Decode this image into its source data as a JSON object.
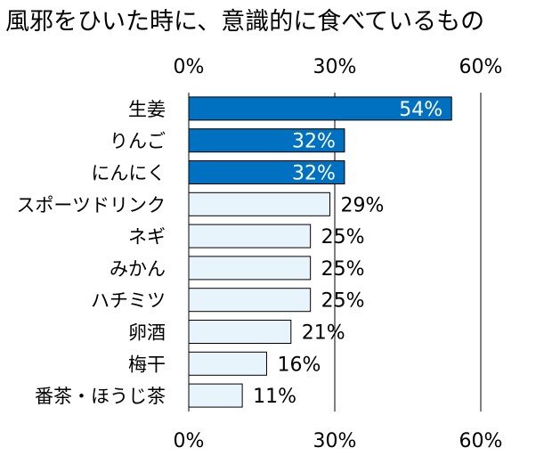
{
  "chart_data": {
    "type": "bar",
    "orientation": "horizontal",
    "title": "風邪をひいた時に、意識的に食べているもの",
    "categories": [
      "生姜",
      "りんご",
      "にんにく",
      "スポーツドリンク",
      "ネギ",
      "みかん",
      "ハチミツ",
      "卵酒",
      "梅干",
      "番茶・ほうじ茶"
    ],
    "values": [
      54,
      32,
      32,
      29,
      25,
      25,
      25,
      21,
      16,
      11
    ],
    "value_labels": [
      "54%",
      "32%",
      "32%",
      "29%",
      "25%",
      "25%",
      "25%",
      "21%",
      "16%",
      "11%"
    ],
    "highlight": [
      true,
      true,
      true,
      false,
      false,
      false,
      false,
      false,
      false,
      false
    ],
    "xlim": [
      0,
      60
    ],
    "x_ticks": [
      0,
      30,
      60
    ],
    "x_tick_labels": [
      "0%",
      "30%",
      "60%"
    ],
    "axis_position": "top and bottom",
    "grid": true,
    "colors": {
      "highlight_fill": "#0070C0",
      "highlight_label": "#FFFFFF",
      "normal_fill": "#E8F4FC",
      "normal_label": "#000000",
      "border": "#000000"
    }
  }
}
